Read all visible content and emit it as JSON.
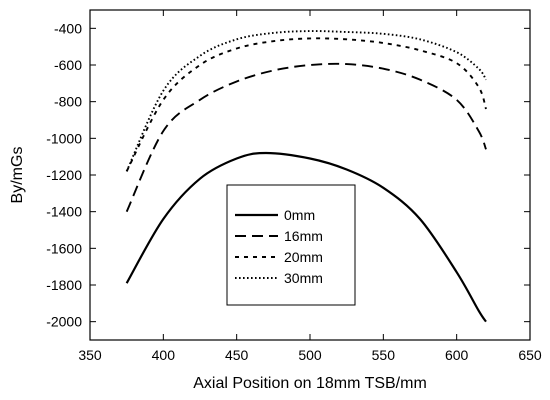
{
  "chart_data": {
    "type": "line",
    "xlabel": "Axial Position on 18mm TSB/mm",
    "ylabel": "By/mGs",
    "xlim": [
      350,
      650
    ],
    "ylim": [
      -2100,
      -300
    ],
    "xticks": [
      350,
      400,
      450,
      500,
      550,
      600,
      650
    ],
    "yticks": [
      -2000,
      -1800,
      -1600,
      -1400,
      -1200,
      -1000,
      -800,
      -600,
      -400
    ],
    "grid": false,
    "legend_position": "lower-center",
    "series": [
      {
        "name": "0mm",
        "line_style": "solid",
        "color": "#000000",
        "x": [
          375,
          400,
          425,
          450,
          470,
          500,
          525,
          550,
          575,
          600,
          615,
          620
        ],
        "y": [
          -1790,
          -1440,
          -1220,
          -1110,
          -1080,
          -1110,
          -1170,
          -1270,
          -1440,
          -1730,
          -1940,
          -2000
        ]
      },
      {
        "name": "16mm",
        "line_style": "dashed",
        "color": "#000000",
        "x": [
          375,
          400,
          425,
          450,
          475,
          500,
          525,
          550,
          575,
          600,
          615,
          620
        ],
        "y": [
          -1400,
          -960,
          -790,
          -690,
          -630,
          -600,
          -595,
          -620,
          -680,
          -790,
          -960,
          -1060
        ]
      },
      {
        "name": "20mm",
        "line_style": "dashed-fine",
        "color": "#000000",
        "x": [
          375,
          400,
          425,
          450,
          475,
          500,
          525,
          550,
          575,
          600,
          615,
          620
        ],
        "y": [
          -1180,
          -790,
          -600,
          -510,
          -470,
          -455,
          -460,
          -480,
          -520,
          -590,
          -720,
          -840
        ]
      },
      {
        "name": "30mm",
        "line_style": "dotted",
        "color": "#000000",
        "x": [
          375,
          400,
          425,
          450,
          475,
          500,
          525,
          550,
          575,
          600,
          615,
          620
        ],
        "y": [
          -1180,
          -740,
          -550,
          -460,
          -425,
          -415,
          -420,
          -430,
          -460,
          -530,
          -620,
          -680
        ]
      }
    ]
  }
}
